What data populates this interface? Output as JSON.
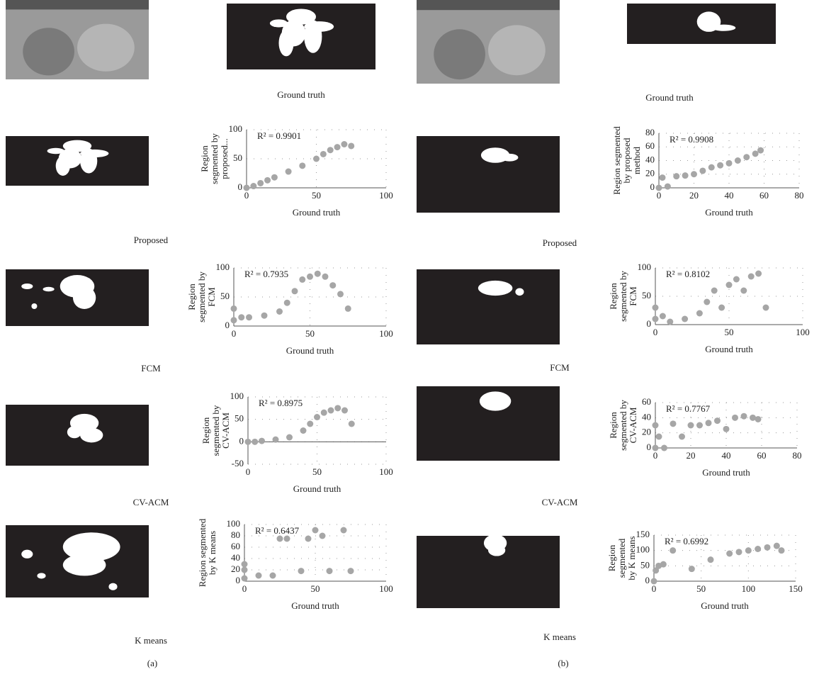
{
  "panels": [
    {
      "label": "(a)",
      "ground_truth_caption": "Ground truth",
      "captions": [
        "Proposed",
        "FCM",
        "CV-ACM",
        "K means"
      ]
    },
    {
      "label": "(b)",
      "ground_truth_caption": "Ground truth",
      "captions": [
        "Proposed",
        "FCM",
        "CV-ACM",
        "K means"
      ]
    }
  ],
  "chart_data": [
    {
      "type": "scatter",
      "y_label": [
        "Region",
        "segmented by",
        "proposed..."
      ],
      "x_label": "Ground truth",
      "annotation": "R² = 0.9901",
      "color": "#a6a6a6",
      "grid": true,
      "xlim": [
        0,
        100
      ],
      "xticks": [
        0,
        50,
        100
      ],
      "ylim": [
        0,
        100
      ],
      "yticks": [
        0,
        50,
        100
      ],
      "x": [
        0,
        5,
        10,
        15,
        20,
        30,
        40,
        50,
        55,
        60,
        65,
        70,
        75
      ],
      "values": [
        0,
        3,
        8,
        13,
        18,
        28,
        38,
        50,
        58,
        65,
        70,
        75,
        72
      ]
    },
    {
      "type": "scatter",
      "y_label": [
        "Region",
        "segmented by",
        "FCM"
      ],
      "x_label": "Ground truth",
      "annotation": "R² = 0.7935",
      "color": "#a6a6a6",
      "grid": true,
      "xlim": [
        0,
        100
      ],
      "xticks": [
        0,
        50,
        100
      ],
      "ylim": [
        0,
        100
      ],
      "yticks": [
        0,
        50,
        100
      ],
      "x": [
        0,
        0,
        5,
        10,
        20,
        30,
        35,
        40,
        45,
        50,
        55,
        60,
        65,
        70,
        75
      ],
      "values": [
        10,
        30,
        15,
        15,
        18,
        25,
        40,
        60,
        80,
        85,
        90,
        85,
        70,
        55,
        30
      ]
    },
    {
      "type": "scatter",
      "y_label": [
        "Region",
        "segmented by",
        "CV-ACM"
      ],
      "x_label": "Ground truth",
      "annotation": "R² = 0.8975",
      "color": "#a6a6a6",
      "grid": true,
      "xlim": [
        0,
        100
      ],
      "xticks": [
        0,
        50,
        100
      ],
      "ylim": [
        -50,
        100
      ],
      "yticks": [
        -50,
        0,
        50,
        100
      ],
      "x": [
        0,
        5,
        10,
        20,
        30,
        40,
        45,
        50,
        55,
        60,
        65,
        70,
        75
      ],
      "values": [
        0,
        0,
        2,
        5,
        10,
        25,
        40,
        55,
        65,
        70,
        75,
        70,
        40
      ]
    },
    {
      "type": "scatter",
      "y_label": [
        "Region segmented",
        "by K means"
      ],
      "x_label": "Ground truth",
      "annotation": "R² = 0.6437",
      "color": "#a6a6a6",
      "grid": true,
      "xlim": [
        0,
        100
      ],
      "xticks": [
        0,
        50,
        100
      ],
      "ylim": [
        0,
        100
      ],
      "yticks": [
        0,
        20,
        40,
        60,
        80,
        100
      ],
      "x": [
        0,
        0,
        0,
        10,
        20,
        25,
        30,
        40,
        45,
        50,
        55,
        60,
        70,
        75
      ],
      "values": [
        5,
        20,
        30,
        10,
        10,
        75,
        75,
        18,
        75,
        90,
        80,
        18,
        90,
        18
      ]
    },
    {
      "type": "scatter",
      "y_label": [
        "Region segmented",
        "by proposed",
        "method"
      ],
      "x_label": "Ground truth",
      "annotation": "R² = 0.9908",
      "color": "#a6a6a6",
      "grid": true,
      "xlim": [
        0,
        80
      ],
      "xticks": [
        0,
        20,
        40,
        60,
        80
      ],
      "ylim": [
        0,
        80
      ],
      "yticks": [
        0,
        20,
        40,
        60,
        80
      ],
      "x": [
        0,
        2,
        5,
        10,
        15,
        20,
        25,
        30,
        35,
        40,
        45,
        50,
        55,
        58
      ],
      "values": [
        0,
        15,
        2,
        17,
        18,
        20,
        25,
        30,
        33,
        36,
        40,
        45,
        50,
        55
      ]
    },
    {
      "type": "scatter",
      "y_label": [
        "Region",
        "segmented by",
        "FCM"
      ],
      "x_label": "Ground truth",
      "annotation": "R² = 0.8102",
      "color": "#a6a6a6",
      "grid": true,
      "xlim": [
        0,
        100
      ],
      "xticks": [
        0,
        50,
        100
      ],
      "ylim": [
        0,
        100
      ],
      "yticks": [
        0,
        50,
        100
      ],
      "x": [
        0,
        0,
        5,
        10,
        20,
        30,
        35,
        40,
        45,
        50,
        55,
        60,
        65,
        70,
        75
      ],
      "values": [
        10,
        30,
        15,
        5,
        10,
        20,
        40,
        60,
        30,
        70,
        80,
        60,
        85,
        90,
        30
      ]
    },
    {
      "type": "scatter",
      "y_label": [
        "Region",
        "segmented by",
        "CV-ACM"
      ],
      "x_label": "Ground truth",
      "annotation": "R² = 0.7767",
      "color": "#a6a6a6",
      "grid": true,
      "xlim": [
        0,
        80
      ],
      "xticks": [
        0,
        20,
        40,
        60,
        80
      ],
      "ylim": [
        0,
        60
      ],
      "yticks": [
        0,
        20,
        40,
        60
      ],
      "x": [
        0,
        0,
        2,
        5,
        10,
        15,
        20,
        25,
        30,
        35,
        40,
        45,
        50,
        55,
        58
      ],
      "values": [
        0,
        30,
        15,
        0,
        32,
        15,
        30,
        30,
        33,
        36,
        25,
        40,
        42,
        40,
        38
      ]
    },
    {
      "type": "scatter",
      "y_label": [
        "Region",
        "segmented",
        "by K means"
      ],
      "x_label": "Ground truth",
      "annotation": "R² = 0.6992",
      "color": "#a6a6a6",
      "grid": true,
      "xlim": [
        0,
        150
      ],
      "xticks": [
        0,
        50,
        100,
        150
      ],
      "ylim": [
        0,
        150
      ],
      "yticks": [
        0,
        50,
        100,
        150
      ],
      "x": [
        0,
        2,
        5,
        10,
        20,
        40,
        60,
        80,
        90,
        100,
        110,
        120,
        130,
        135
      ],
      "values": [
        0,
        35,
        50,
        55,
        100,
        40,
        70,
        90,
        95,
        100,
        105,
        110,
        115,
        100
      ]
    }
  ]
}
